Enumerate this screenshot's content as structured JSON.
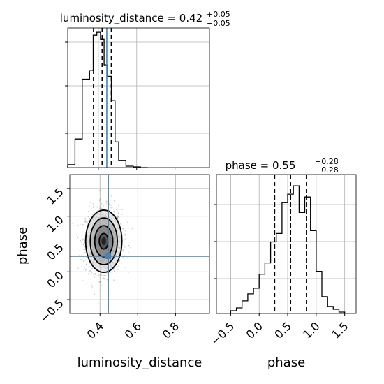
{
  "chart_data": {
    "type": "corner",
    "parameters": [
      "luminosity_distance",
      "phase"
    ],
    "panels": [
      {
        "panel": "histogram",
        "parameter": "luminosity_distance",
        "title_main": "luminosity_distance = 0.42",
        "title_sup": "+0.05",
        "title_sub": "−0.05",
        "median": 0.42,
        "quantile_lines": [
          0.375,
          0.42,
          0.468
        ],
        "truth": 0.444,
        "xlim": [
          0.24,
          0.98
        ],
        "bin_edges": [
          0.24,
          0.278,
          0.316,
          0.354,
          0.373,
          0.392,
          0.411,
          0.43,
          0.449,
          0.468,
          0.487,
          0.506,
          0.544,
          0.582,
          0.62,
          0.658
        ],
        "counts": [
          0.02,
          0.2,
          0.62,
          0.68,
          0.93,
          0.95,
          0.9,
          0.72,
          0.64,
          0.47,
          0.18,
          0.05,
          0.01,
          0.005,
          0
        ],
        "grid": true
      },
      {
        "panel": "histogram",
        "parameter": "phase",
        "title_main": "phase = 0.55",
        "title_sup": "+0.28",
        "title_sub": "−0.28",
        "median": 0.55,
        "quantile_lines": [
          0.27,
          0.55,
          0.83
        ],
        "xlim": [
          -0.75,
          1.7
        ],
        "x_ticks": [
          "−0.5",
          "0.0",
          "0.5",
          "1.0",
          "1.5"
        ],
        "x_tick_values": [
          -0.5,
          0.0,
          0.5,
          1.0,
          1.5
        ],
        "xlabel": "phase",
        "bin_edges": [
          -0.5,
          -0.4,
          -0.3,
          -0.2,
          -0.1,
          0,
          0.1,
          0.2,
          0.3,
          0.4,
          0.5,
          0.6,
          0.7,
          0.8,
          0.9,
          1.0,
          1.1,
          1.2,
          1.3,
          1.4,
          1.5
        ],
        "counts": [
          0.02,
          0.04,
          0.09,
          0.14,
          0.18,
          0.28,
          0.36,
          0.51,
          0.57,
          0.79,
          0.85,
          0.91,
          0.72,
          0.83,
          0.59,
          0.3,
          0.12,
          0.05,
          0.03,
          0.01
        ],
        "grid": true
      },
      {
        "panel": "2d-density",
        "x_parameter": "luminosity_distance",
        "y_parameter": "phase",
        "xlim": [
          0.24,
          0.98
        ],
        "ylim": [
          -0.75,
          1.75
        ],
        "x_ticks": [
          "0.4",
          "0.6",
          "0.8"
        ],
        "x_tick_values": [
          0.4,
          0.6,
          0.8
        ],
        "y_ticks": [
          "−0.5",
          "0.0",
          "0.5",
          "1.0",
          "1.5"
        ],
        "y_tick_values": [
          -0.5,
          0.0,
          0.5,
          1.0,
          1.5
        ],
        "xlabel": "luminosity_distance",
        "ylabel": "phase",
        "truth": {
          "x": 0.444,
          "y": 0.28
        },
        "truth_color": "#4682b4",
        "density_center": {
          "x": 0.42,
          "y": 0.55
        },
        "density_sigma": {
          "x": 0.048,
          "y": 0.28
        },
        "contour_levels_sigma": [
          0.5,
          1.0,
          1.5,
          2.0
        ],
        "grid": true
      }
    ]
  }
}
